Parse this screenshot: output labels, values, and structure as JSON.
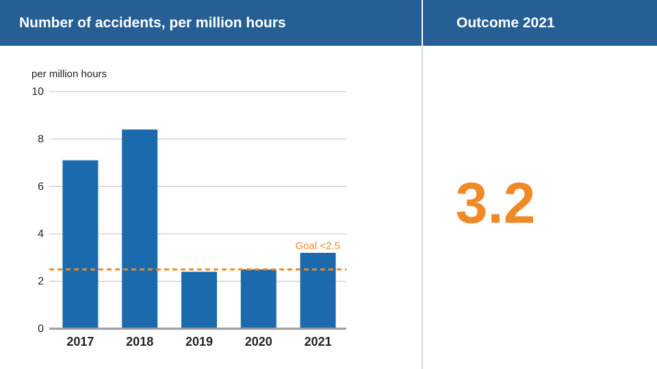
{
  "header": {
    "chart_title": "Number of accidents, per million hours",
    "outcome_title": "Outcome 2021"
  },
  "outcome": {
    "value": "3.2"
  },
  "colors": {
    "header_bg": "#255f93",
    "bar": "#1b6aad",
    "goal": "#f0892a",
    "grid": "#bfbfbf",
    "axis": "#9a9a9a"
  },
  "chart_data": {
    "type": "bar",
    "title": "Number of accidents, per million hours",
    "ylabel": "per million hours",
    "xlabel": "",
    "categories": [
      "2017",
      "2018",
      "2019",
      "2020",
      "2021"
    ],
    "values": [
      7.1,
      8.4,
      2.4,
      2.5,
      3.2
    ],
    "ylim": [
      0,
      10
    ],
    "yticks": [
      0,
      2,
      4,
      6,
      8,
      10
    ],
    "grid": true,
    "reference_line": {
      "value": 2.5,
      "label": "Goal <2.5"
    }
  }
}
